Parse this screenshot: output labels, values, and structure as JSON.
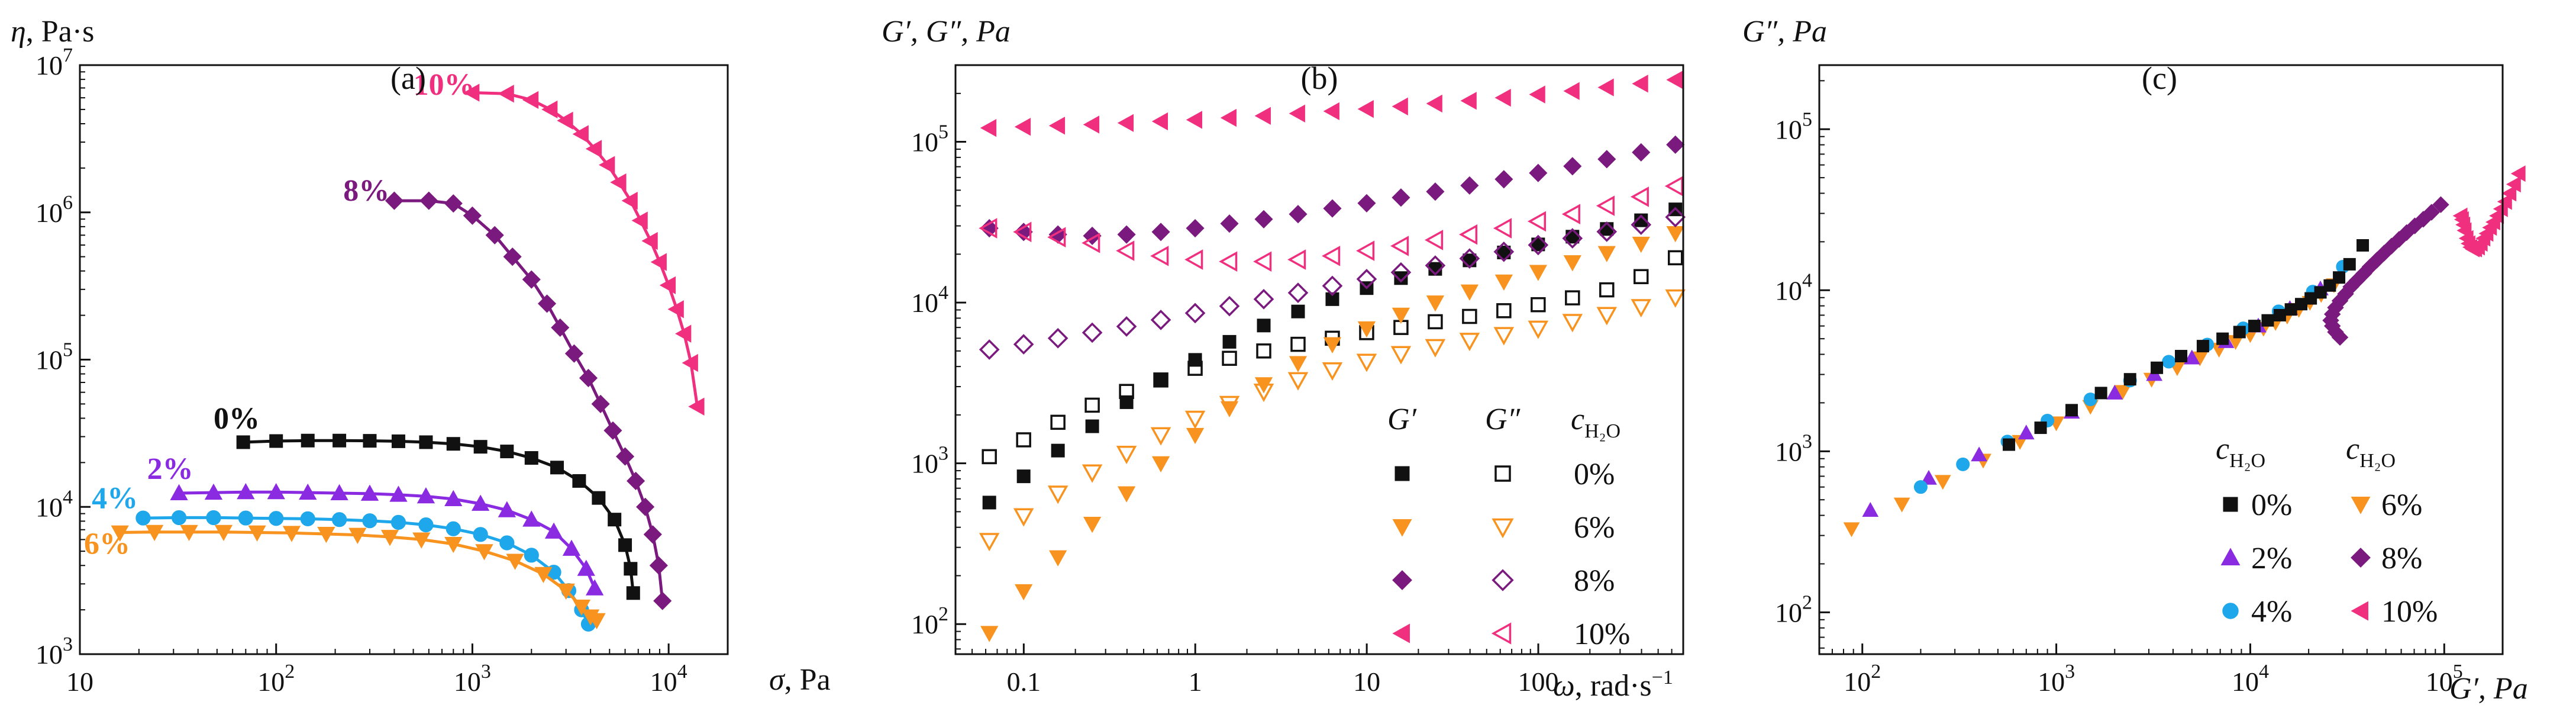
{
  "chart_data": [
    {
      "id": "a",
      "type": "line",
      "title": "(a)",
      "ylabel_sym": "η",
      "ylabel_unit": ", Pa·s",
      "xlabel_sym": "σ",
      "xlabel_unit": ", Pa",
      "xscale": "log",
      "yscale": "log",
      "xlim": [
        10,
        20000
      ],
      "ylim": [
        1000,
        10000000
      ],
      "xticks": [
        {
          "v": 10,
          "b": "10",
          "e": ""
        },
        {
          "v": 100,
          "b": "10",
          "e": "2"
        },
        {
          "v": 1000,
          "b": "10",
          "e": "3"
        },
        {
          "v": 10000,
          "b": "10",
          "e": "4"
        }
      ],
      "yticks": [
        {
          "v": 1000,
          "b": "10",
          "e": "3"
        },
        {
          "v": 10000,
          "b": "10",
          "e": "4"
        },
        {
          "v": 100000,
          "b": "10",
          "e": "5"
        },
        {
          "v": 1000000,
          "b": "10",
          "e": "6"
        },
        {
          "v": 10000000,
          "b": "10",
          "e": "7"
        }
      ],
      "series": [
        {
          "name": "0%",
          "color": "#111111",
          "marker": "square",
          "label_at": [
            48,
            34000
          ],
          "x": [
            68,
            100,
            145,
            210,
            300,
            420,
            580,
            800,
            1100,
            1500,
            2000,
            2700,
            3500,
            4400,
            5300,
            6000,
            6400,
            6600
          ],
          "y": [
            27500,
            28000,
            28200,
            28200,
            28100,
            27900,
            27500,
            26800,
            25600,
            23800,
            21500,
            18500,
            15000,
            11500,
            8200,
            5500,
            3800,
            2600
          ]
        },
        {
          "name": "2%",
          "color": "#8a2be2",
          "marker": "triangle-up",
          "label_at": [
            22,
            15500
          ],
          "x": [
            32,
            48,
            70,
            100,
            145,
            210,
            300,
            420,
            580,
            800,
            1100,
            1500,
            2000,
            2600,
            3200,
            3800,
            4200
          ],
          "y": [
            12400,
            12500,
            12600,
            12600,
            12500,
            12400,
            12300,
            12100,
            11800,
            11300,
            10500,
            9500,
            8200,
            6800,
            5200,
            3800,
            2800
          ]
        },
        {
          "name": "4%",
          "color": "#1ea7ea",
          "marker": "circle",
          "label_at": [
            11.5,
            9800
          ],
          "x": [
            21,
            32,
            48,
            70,
            100,
            145,
            210,
            300,
            420,
            580,
            800,
            1100,
            1500,
            2000,
            2600,
            3100,
            3600,
            3900
          ],
          "y": [
            8400,
            8450,
            8450,
            8400,
            8350,
            8300,
            8200,
            8050,
            7850,
            7550,
            7100,
            6500,
            5700,
            4700,
            3600,
            2700,
            2000,
            1600
          ]
        },
        {
          "name": "6%",
          "color": "#f7931e",
          "marker": "triangle-down",
          "label_at": [
            10.5,
            4800
          ],
          "x": [
            16,
            24,
            36,
            54,
            80,
            120,
            180,
            260,
            380,
            550,
            800,
            1150,
            1650,
            2300,
            3000,
            3600,
            4000,
            4300
          ],
          "y": [
            6700,
            6750,
            6750,
            6750,
            6700,
            6650,
            6550,
            6450,
            6250,
            6000,
            5600,
            5000,
            4300,
            3500,
            2700,
            2100,
            1800,
            1700
          ]
        },
        {
          "name": "8%",
          "color": "#7b1a7e",
          "marker": "diamond",
          "label_at": [
            220,
            1200000
          ],
          "x": [
            400,
            600,
            800,
            1000,
            1300,
            1600,
            2000,
            2400,
            2800,
            3300,
            3900,
            4500,
            5200,
            6000,
            6800,
            7600,
            8300,
            8900,
            9300
          ],
          "y": [
            1200000,
            1200000,
            1150000,
            950000,
            700000,
            500000,
            350000,
            240000,
            165000,
            110000,
            75000,
            50000,
            33000,
            22000,
            15000,
            10000,
            6500,
            4000,
            2300
          ]
        },
        {
          "name": "10%",
          "color": "#f0307f",
          "marker": "triangle-left",
          "label_at": [
            500,
            6300000
          ],
          "x": [
            1000,
            1500,
            2000,
            2500,
            3000,
            3600,
            4200,
            4900,
            5600,
            6400,
            7200,
            8100,
            9000,
            10000,
            11000,
            12000,
            13000,
            14000
          ],
          "y": [
            6500000,
            6400000,
            5800000,
            5000000,
            4200000,
            3400000,
            2700000,
            2100000,
            1600000,
            1200000,
            880000,
            640000,
            460000,
            320000,
            220000,
            150000,
            95000,
            48000
          ]
        }
      ]
    },
    {
      "id": "b",
      "type": "scatter",
      "title": "(b)",
      "ylabel": "G′, G″, Pa",
      "xlabel_sym": "ω",
      "xlabel_unit": ", rad·s",
      "xlabel_exp": "−1",
      "xscale": "log",
      "yscale": "log",
      "xlim": [
        0.04,
        700
      ],
      "ylim": [
        65,
        300000
      ],
      "xticks": [
        {
          "v": 0.1,
          "b": "0.1",
          "e": ""
        },
        {
          "v": 1,
          "b": "1",
          "e": ""
        },
        {
          "v": 10,
          "b": "10",
          "e": ""
        },
        {
          "v": 100,
          "b": "100",
          "e": ""
        }
      ],
      "yticks": [
        {
          "v": 100,
          "b": "10",
          "e": "2"
        },
        {
          "v": 1000,
          "b": "10",
          "e": "3"
        },
        {
          "v": 10000,
          "b": "10",
          "e": "4"
        },
        {
          "v": 100000,
          "b": "10",
          "e": "5"
        }
      ],
      "legend": {
        "header_gp": "G′",
        "header_gpp": "G″",
        "header_c": "c",
        "header_c_sub": "H₂O",
        "rows": [
          "0%",
          "6%",
          "8%",
          "10%"
        ]
      },
      "series": [
        {
          "name": "G′ 0%",
          "color": "#111111",
          "marker": "square",
          "fill": true,
          "x0": 0.063,
          "x1": 630,
          "n": 21,
          "y": [
            570,
            830,
            1200,
            1700,
            2400,
            3300,
            4400,
            5700,
            7200,
            8800,
            10500,
            12300,
            14200,
            16200,
            18300,
            20500,
            23000,
            25700,
            28700,
            32500,
            38000
          ]
        },
        {
          "name": "G″ 0%",
          "color": "#111111",
          "marker": "square",
          "fill": false,
          "x0": 0.063,
          "x1": 630,
          "n": 21,
          "y": [
            1100,
            1400,
            1800,
            2300,
            2800,
            3300,
            3900,
            4500,
            5000,
            5500,
            6000,
            6500,
            7000,
            7600,
            8200,
            8900,
            9700,
            10700,
            12000,
            14500,
            19000
          ]
        },
        {
          "name": "G′ 6%",
          "color": "#f7931e",
          "marker": "triangle-down",
          "fill": true,
          "x0": 0.063,
          "x1": 630,
          "n": 21,
          "y": [
            88,
            160,
            260,
            420,
            650,
            1000,
            1500,
            2200,
            3100,
            4200,
            5500,
            6900,
            8400,
            10000,
            11700,
            13500,
            15500,
            17800,
            20300,
            23200,
            27000
          ]
        },
        {
          "name": "G″ 6%",
          "color": "#f7931e",
          "marker": "triangle-down",
          "fill": false,
          "x0": 0.063,
          "x1": 630,
          "n": 21,
          "y": [
            330,
            470,
            650,
            880,
            1150,
            1500,
            1900,
            2350,
            2800,
            3300,
            3800,
            4300,
            4800,
            5300,
            5800,
            6300,
            6900,
            7600,
            8400,
            9400,
            10800
          ]
        },
        {
          "name": "G′ 8%",
          "color": "#7b1a7e",
          "marker": "diamond",
          "fill": true,
          "x0": 0.063,
          "x1": 630,
          "n": 21,
          "y": [
            29000,
            27500,
            26500,
            26000,
            26500,
            27500,
            29000,
            31000,
            33000,
            35500,
            38500,
            41500,
            45000,
            49000,
            53500,
            58500,
            64000,
            70500,
            78000,
            86000,
            96000
          ]
        },
        {
          "name": "G″ 8%",
          "color": "#7b1a7e",
          "marker": "diamond",
          "fill": false,
          "x0": 0.063,
          "x1": 630,
          "n": 21,
          "y": [
            5100,
            5500,
            6000,
            6500,
            7100,
            7800,
            8600,
            9500,
            10500,
            11500,
            12700,
            14000,
            15400,
            17000,
            18800,
            20700,
            22800,
            25100,
            27600,
            30500,
            34000
          ]
        },
        {
          "name": "G′ 10%",
          "color": "#f0307f",
          "marker": "triangle-left",
          "fill": true,
          "x0": 0.063,
          "x1": 630,
          "n": 21,
          "y": [
            122000,
            124000,
            126000,
            128000,
            131000,
            134000,
            137000,
            141000,
            145000,
            150000,
            155000,
            160000,
            166000,
            173000,
            180000,
            188000,
            197000,
            207000,
            218000,
            230000,
            243000
          ]
        },
        {
          "name": "G″ 10%",
          "color": "#f0307f",
          "marker": "triangle-left",
          "fill": false,
          "x0": 0.063,
          "x1": 630,
          "n": 21,
          "y": [
            29000,
            27500,
            25500,
            23500,
            21000,
            19500,
            18500,
            18000,
            18000,
            18500,
            19500,
            21000,
            22500,
            24500,
            26500,
            29000,
            32000,
            35500,
            40000,
            45500,
            53000
          ]
        }
      ]
    },
    {
      "id": "c",
      "type": "scatter",
      "title": "(c)",
      "ylabel": "G″, Pa",
      "xlabel": "G′, Pa",
      "xscale": "log",
      "yscale": "log",
      "xlim": [
        60,
        200000
      ],
      "ylim": [
        55,
        250000
      ],
      "xticks": [
        {
          "v": 100,
          "b": "10",
          "e": "2"
        },
        {
          "v": 1000,
          "b": "10",
          "e": "3"
        },
        {
          "v": 10000,
          "b": "10",
          "e": "4"
        },
        {
          "v": 100000,
          "b": "10",
          "e": "5"
        }
      ],
      "yticks": [
        {
          "v": 100,
          "b": "10",
          "e": "2"
        },
        {
          "v": 1000,
          "b": "10",
          "e": "3"
        },
        {
          "v": 10000,
          "b": "10",
          "e": "4"
        },
        {
          "v": 100000,
          "b": "10",
          "e": "5"
        }
      ],
      "legend": {
        "header_c": "c",
        "header_c_sub": "H₂O",
        "col1": [
          {
            "label": "0%",
            "color": "#111111",
            "marker": "square"
          },
          {
            "label": "2%",
            "color": "#8a2be2",
            "marker": "triangle-up"
          },
          {
            "label": "4%",
            "color": "#1ea7ea",
            "marker": "circle"
          }
        ],
        "col2": [
          {
            "label": "6%",
            "color": "#f7931e",
            "marker": "triangle-down"
          },
          {
            "label": "8%",
            "color": "#7b1a7e",
            "marker": "diamond"
          },
          {
            "label": "10%",
            "color": "#f0307f",
            "marker": "triangle-left"
          }
        ]
      },
      "series": [
        {
          "name": "6%",
          "color": "#f7931e",
          "marker": "triangle-down",
          "x": [
            88,
            160,
            260,
            420,
            650,
            1000,
            1500,
            2200,
            3100,
            4200,
            5500,
            6900,
            8400,
            10000,
            11700,
            13500,
            15500,
            17800,
            20300,
            23200,
            27000
          ],
          "y": [
            330,
            470,
            650,
            880,
            1150,
            1500,
            1900,
            2350,
            2800,
            3300,
            3800,
            4300,
            4800,
            5300,
            5800,
            6300,
            6900,
            7600,
            8400,
            9400,
            10800
          ]
        },
        {
          "name": "2%",
          "color": "#8a2be2",
          "marker": "triangle-up",
          "x": [
            110,
            220,
            400,
            700,
            1200,
            2000,
            3200,
            5000,
            7500,
            11000,
            16000,
            23000
          ],
          "y": [
            430,
            680,
            950,
            1300,
            1750,
            2300,
            3000,
            3800,
            4800,
            6000,
            7700,
            10200
          ]
        },
        {
          "name": "4%",
          "color": "#1ea7ea",
          "marker": "circle",
          "x": [
            200,
            330,
            560,
            900,
            1500,
            2400,
            3800,
            6000,
            9200,
            14000,
            21000,
            30000
          ],
          "y": [
            600,
            830,
            1150,
            1550,
            2100,
            2750,
            3600,
            4600,
            5800,
            7400,
            9800,
            14000
          ]
        },
        {
          "name": "0%",
          "color": "#111111",
          "marker": "square",
          "x": [
            570,
            830,
            1200,
            1700,
            2400,
            3300,
            4400,
            5700,
            7200,
            8800,
            10500,
            12300,
            14200,
            16200,
            18300,
            20500,
            23000,
            25700,
            28700,
            32500,
            38000
          ],
          "y": [
            1100,
            1400,
            1800,
            2300,
            2800,
            3300,
            3900,
            4500,
            5000,
            5500,
            6000,
            6500,
            7000,
            7600,
            8200,
            8900,
            9700,
            10700,
            12000,
            14500,
            19000
          ]
        },
        {
          "name": "8%",
          "color": "#7b1a7e",
          "marker": "diamond",
          "x": [
            29000,
            27500,
            26500,
            26000,
            26500,
            27500,
            29000,
            31000,
            33000,
            35500,
            38500,
            41500,
            45000,
            49000,
            53500,
            58500,
            64000,
            70500,
            78000,
            86000,
            96000
          ],
          "y": [
            5100,
            5500,
            6000,
            6500,
            7100,
            7800,
            8600,
            9500,
            10500,
            11500,
            12700,
            14000,
            15400,
            17000,
            18800,
            20700,
            22800,
            25100,
            27600,
            30500,
            34000
          ]
        },
        {
          "name": "10%",
          "color": "#f0307f",
          "marker": "triangle-left",
          "x": [
            122000,
            124000,
            126000,
            128000,
            131000,
            134000,
            137000,
            141000,
            145000,
            150000,
            155000,
            160000,
            166000,
            173000,
            180000,
            188000,
            197000,
            207000,
            218000,
            230000,
            243000
          ],
          "y": [
            29000,
            27500,
            25500,
            23500,
            21000,
            19500,
            18500,
            18000,
            18000,
            18500,
            19500,
            21000,
            22500,
            24500,
            26500,
            29000,
            32000,
            35500,
            40000,
            45500,
            53000
          ]
        }
      ]
    }
  ]
}
